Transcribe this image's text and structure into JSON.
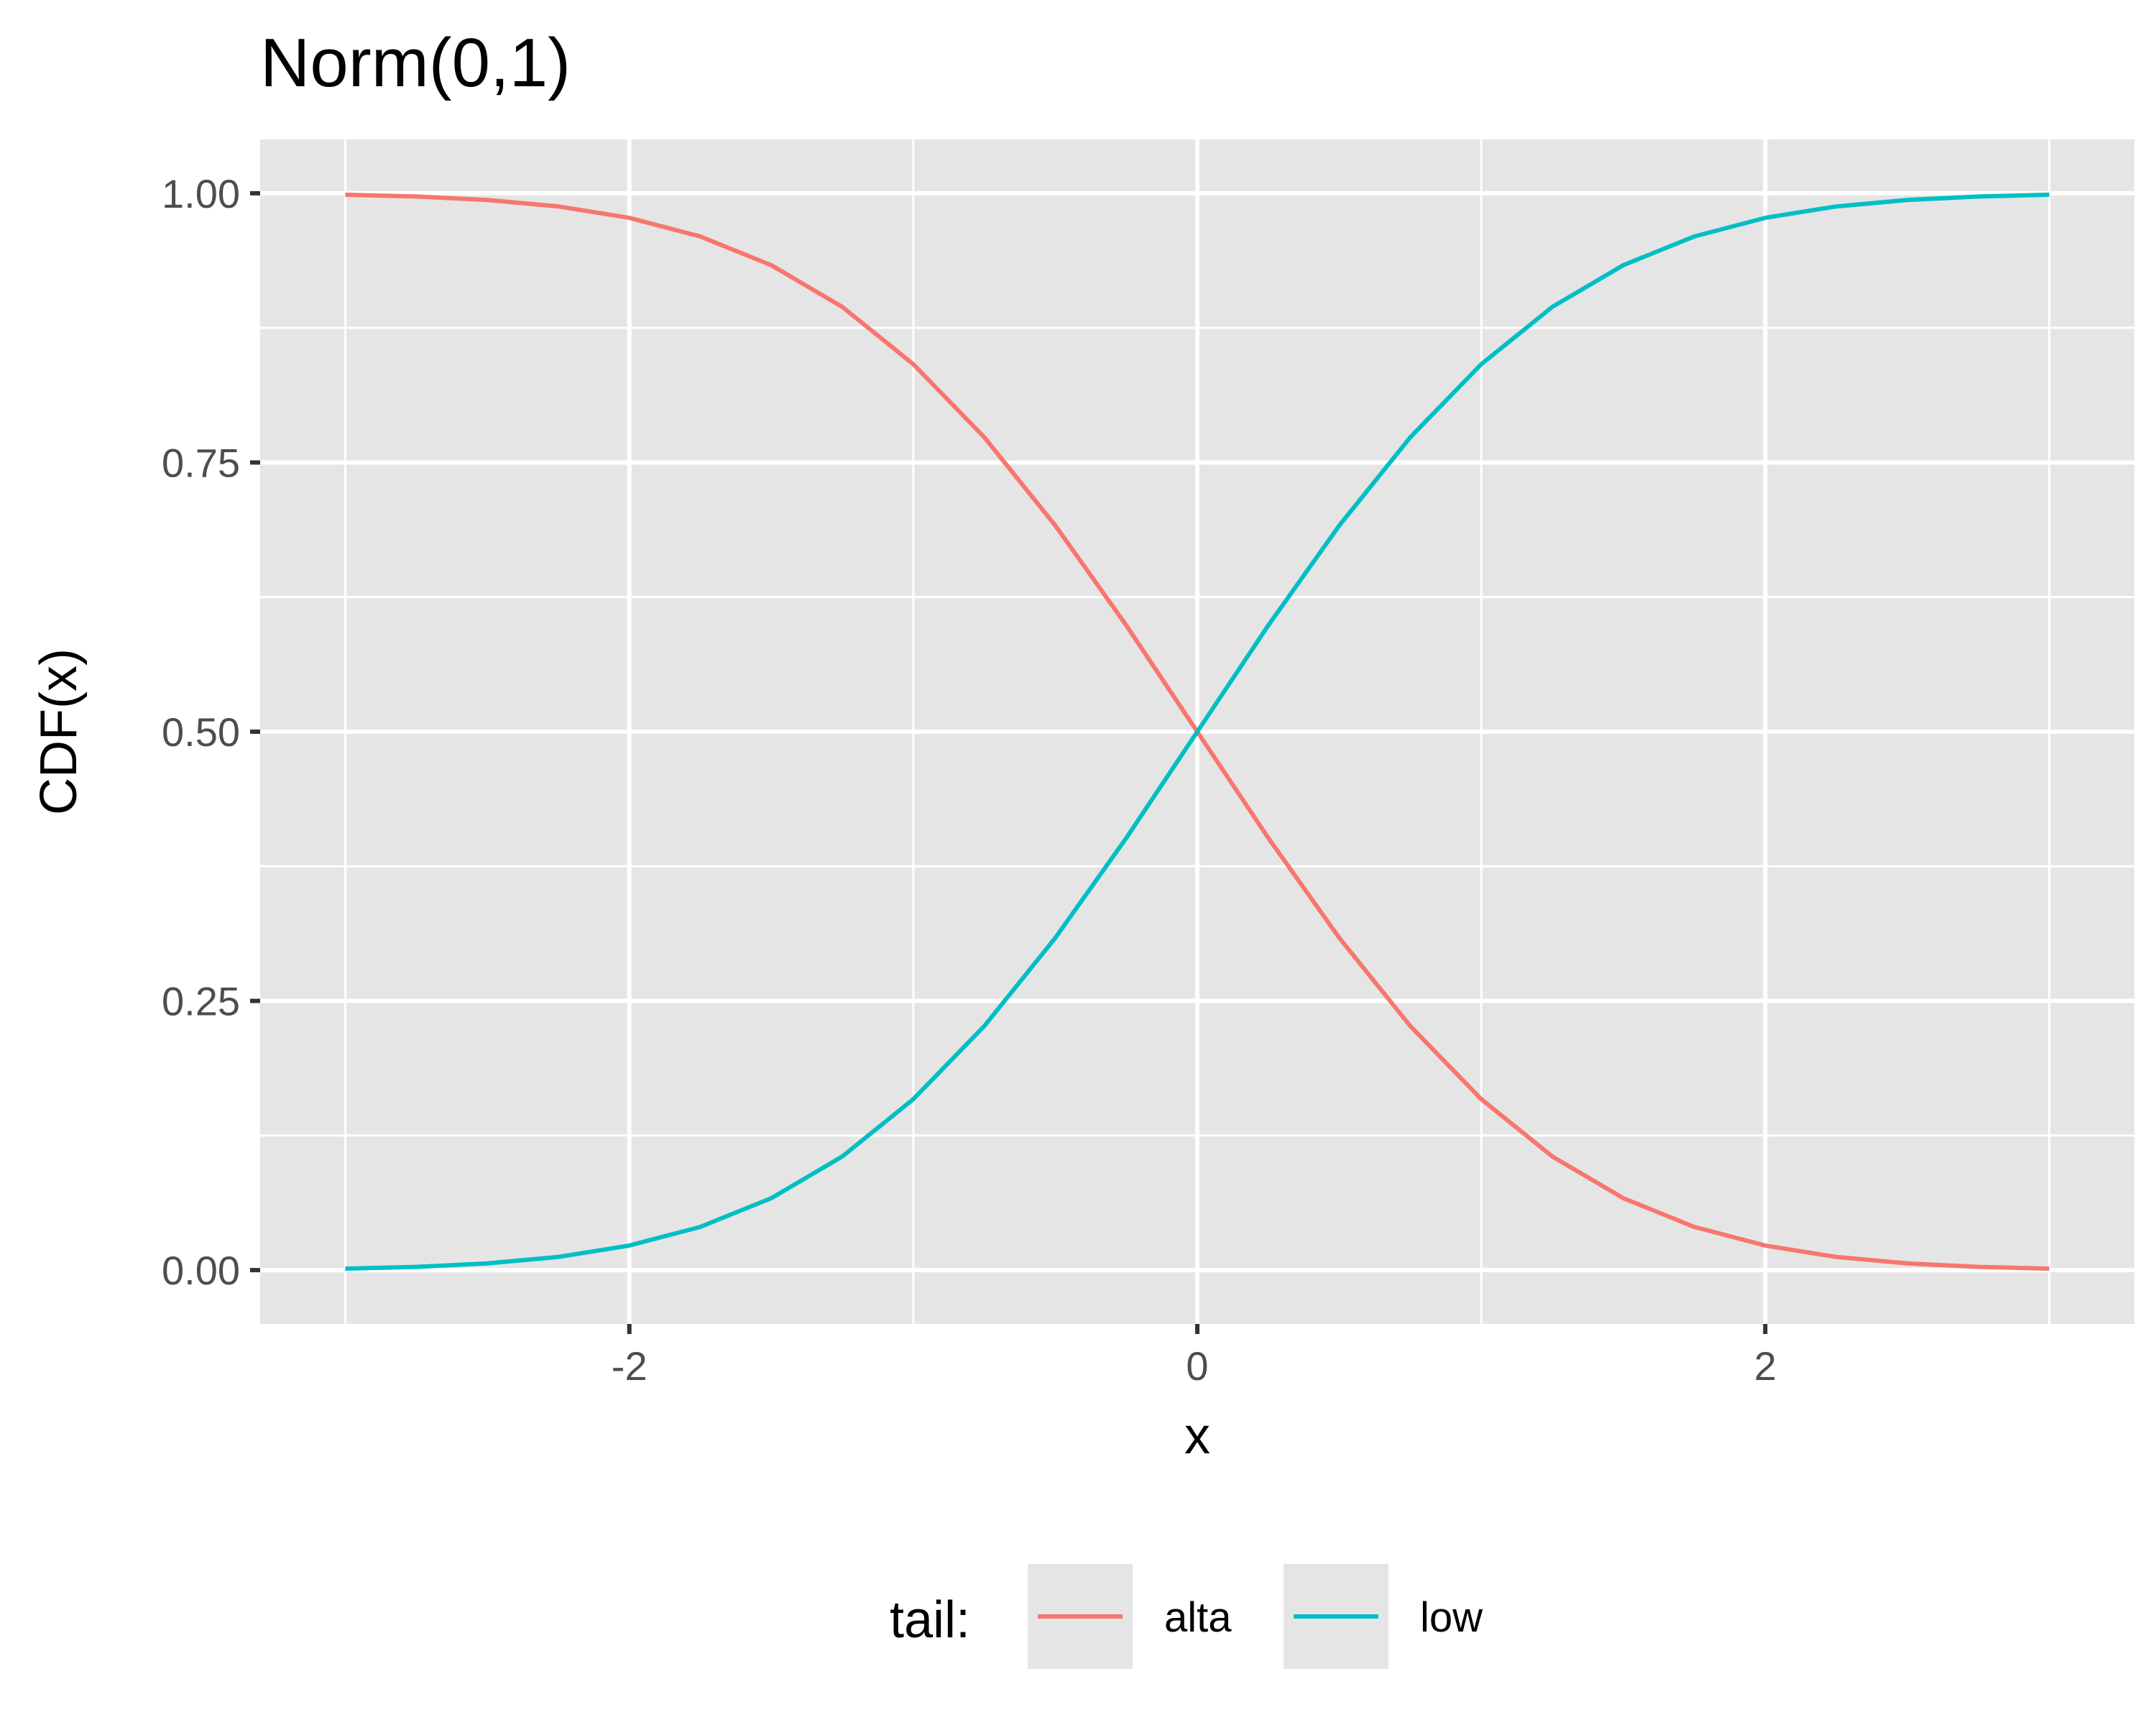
{
  "chart_data": {
    "type": "line",
    "title": "Norm(0,1)",
    "xlabel": "x",
    "ylabel": "CDF(x)",
    "xlim": [
      -3.3,
      3.3
    ],
    "ylim": [
      -0.05,
      1.05
    ],
    "x_ticks": [
      -2,
      0,
      2
    ],
    "x_tick_labels": [
      "-2",
      "0",
      "2"
    ],
    "x_minor_ticks": [
      -3,
      -1,
      1,
      3
    ],
    "y_ticks": [
      0,
      0.25,
      0.5,
      0.75,
      1
    ],
    "y_tick_labels": [
      "0.00",
      "0.25",
      "0.50",
      "0.75",
      "1.00"
    ],
    "y_minor_ticks": [
      0.125,
      0.375,
      0.625,
      0.875
    ],
    "grid": true,
    "panel_background": "#e5e5e5",
    "legend": {
      "title": "tail:",
      "position": "bottom"
    },
    "x": [
      -3,
      -2.75,
      -2.5,
      -2.25,
      -2,
      -1.75,
      -1.5,
      -1.25,
      -1,
      -0.75,
      -0.5,
      -0.25,
      0,
      0.25,
      0.5,
      0.75,
      1,
      1.25,
      1.5,
      1.75,
      2,
      2.25,
      2.5,
      2.75,
      3
    ],
    "series": [
      {
        "name": "alta",
        "color": "#F8766D",
        "values": [
          0.9987,
          0.997,
          0.9938,
          0.9878,
          0.9772,
          0.9599,
          0.9332,
          0.8944,
          0.8413,
          0.7734,
          0.6915,
          0.5987,
          0.5,
          0.4013,
          0.3085,
          0.2266,
          0.1587,
          0.1056,
          0.0668,
          0.0401,
          0.0228,
          0.0122,
          0.0062,
          0.003,
          0.0013
        ]
      },
      {
        "name": "low",
        "color": "#00BFC4",
        "values": [
          0.0013,
          0.003,
          0.0062,
          0.0122,
          0.0228,
          0.0401,
          0.0668,
          0.1056,
          0.1587,
          0.2266,
          0.3085,
          0.4013,
          0.5,
          0.5987,
          0.6915,
          0.7734,
          0.8413,
          0.8944,
          0.9332,
          0.9599,
          0.9772,
          0.9878,
          0.9938,
          0.997,
          0.9987
        ]
      }
    ]
  }
}
